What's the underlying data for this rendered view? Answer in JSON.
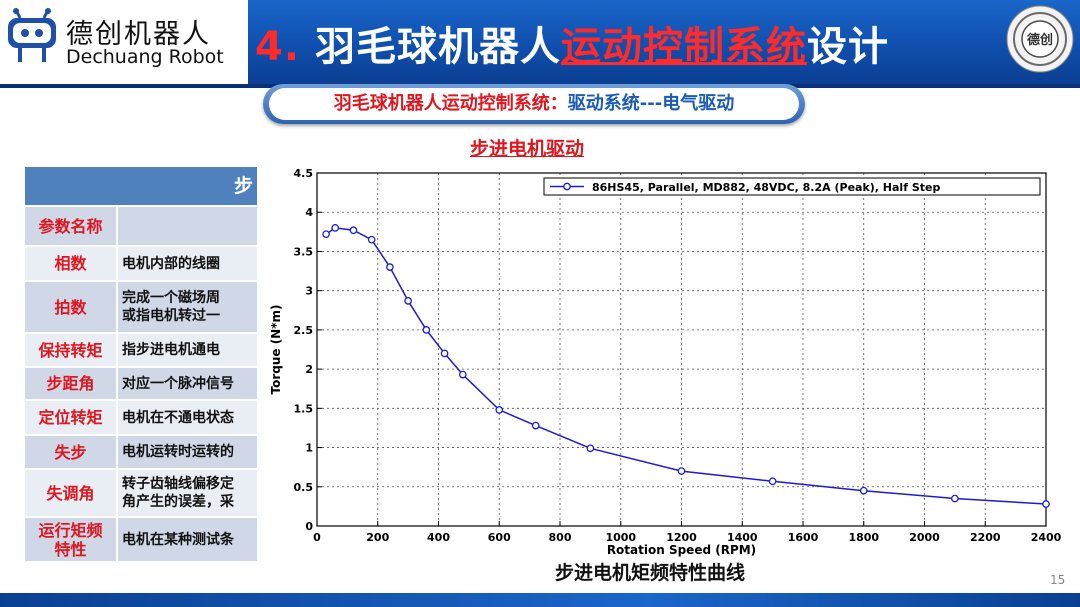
{
  "header": {
    "brand_cn": "德创机器人",
    "brand_en": "Dechuang Robot",
    "title_num": "4. ",
    "title_part1": "羽毛球机器人",
    "title_red": "运动控制系统",
    "title_part2": "设计",
    "seal_text": "德创"
  },
  "subtitle": {
    "red": "羽毛球机器人运动控制系统：",
    "blue": "驱动系统---电气驱动"
  },
  "section_title": "步进电机驱动",
  "table": {
    "header": "步",
    "rows": [
      {
        "key": "参数名称",
        "value": ""
      },
      {
        "key": "相数",
        "value": "电机内部的线圈"
      },
      {
        "key": "拍数",
        "value": "完成一个磁场周\n或指电机转过一"
      },
      {
        "key": "保持转矩",
        "value": "指步进电机通电"
      },
      {
        "key": "步距角",
        "value": "对应一个脉冲信号"
      },
      {
        "key": "定位转矩",
        "value": "电机在不通电状态"
      },
      {
        "key": "失步",
        "value": "电机运转时运转的"
      },
      {
        "key": "失调角",
        "value": "转子齿轴线偏移定\n角产生的误差，采"
      },
      {
        "key": "运行矩频\n特性",
        "value": "电机在某种测试条"
      }
    ]
  },
  "chart_data": {
    "type": "line",
    "title": "",
    "xlabel": "Rotation Speed (RPM)",
    "ylabel": "Torque (N*m)",
    "xlim": [
      0,
      2400
    ],
    "ylim": [
      0,
      4.5
    ],
    "xticks": [
      "0",
      "200",
      "400",
      "600",
      "800",
      "1000",
      "1200",
      "1400",
      "1600",
      "1800",
      "2000",
      "2200",
      "2400"
    ],
    "yticks": [
      "0",
      "0.5",
      "1",
      "1.5",
      "2",
      "2.5",
      "3",
      "3.5",
      "4",
      "4.5"
    ],
    "grid": true,
    "legend_position": "top-right",
    "series": [
      {
        "name": "86HS45, Parallel, MD882, 48VDC, 8.2A (Peak), Half Step",
        "color": "#1a1adb",
        "x": [
          30,
          60,
          120,
          180,
          240,
          300,
          360,
          420,
          480,
          600,
          720,
          900,
          1200,
          1500,
          1800,
          2100,
          2400
        ],
        "y": [
          3.72,
          3.8,
          3.77,
          3.65,
          3.3,
          2.87,
          2.5,
          2.2,
          1.93,
          1.48,
          1.28,
          0.99,
          0.7,
          0.57,
          0.45,
          0.35,
          0.28
        ]
      }
    ]
  },
  "chart_caption": "步进电机矩频特性曲线",
  "page_number": "15"
}
